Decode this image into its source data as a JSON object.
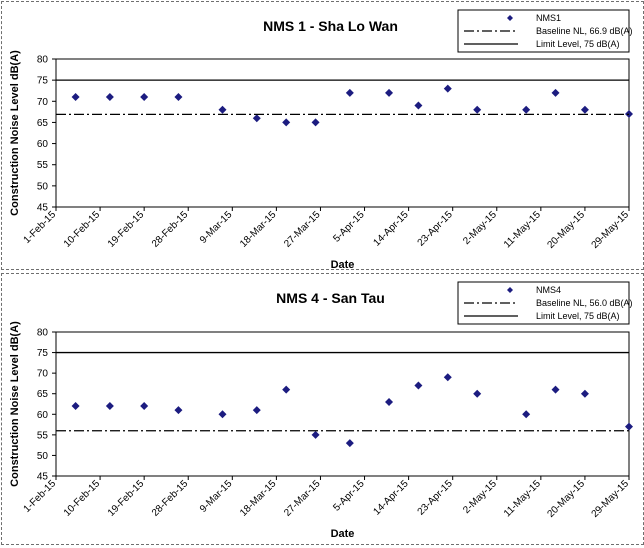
{
  "chart_data": [
    {
      "type": "scatter",
      "title": "NMS 1 - Sha Lo Wan",
      "xlabel": "Date",
      "ylabel": "Construction Noise Level  dB(A)",
      "ylim": [
        45,
        80
      ],
      "y_ticks": [
        45,
        50,
        55,
        60,
        65,
        70,
        75,
        80
      ],
      "x_tick_labels": [
        "1-Feb-15",
        "10-Feb-15",
        "19-Feb-15",
        "28-Feb-15",
        "9-Mar-15",
        "18-Mar-15",
        "27-Mar-15",
        "5-Apr-15",
        "14-Apr-15",
        "23-Apr-15",
        "2-May-15",
        "11-May-15",
        "20-May-15",
        "29-May-15"
      ],
      "grid": false,
      "legend_position": "top-right",
      "series": [
        {
          "name": "NMS1",
          "kind": "points",
          "color": "#1c1c80",
          "x": [
            "2015-02-05",
            "2015-02-12",
            "2015-02-19",
            "2015-02-26",
            "2015-03-07",
            "2015-03-14",
            "2015-03-20",
            "2015-03-26",
            "2015-04-02",
            "2015-04-10",
            "2015-04-16",
            "2015-04-22",
            "2015-04-28",
            "2015-05-08",
            "2015-05-14",
            "2015-05-20",
            "2015-05-29"
          ],
          "y": [
            71,
            71,
            71,
            71,
            68,
            66,
            65,
            65,
            72,
            72,
            69,
            73,
            68,
            68,
            72,
            68,
            67
          ]
        },
        {
          "name": "Baseline NL, 66.9 dB(A)",
          "kind": "hline",
          "value": 66.9,
          "style": "dashdot",
          "color": "#000000"
        },
        {
          "name": "Limit Level, 75 dB(A)",
          "kind": "hline",
          "value": 75,
          "style": "solid",
          "color": "#000000"
        }
      ]
    },
    {
      "type": "scatter",
      "title": "NMS 4 - San Tau",
      "xlabel": "Date",
      "ylabel": "Construction Noise Level  dB(A)",
      "ylim": [
        45,
        80
      ],
      "y_ticks": [
        45,
        50,
        55,
        60,
        65,
        70,
        75,
        80
      ],
      "x_tick_labels": [
        "1-Feb-15",
        "10-Feb-15",
        "19-Feb-15",
        "28-Feb-15",
        "9-Mar-15",
        "18-Mar-15",
        "27-Mar-15",
        "5-Apr-15",
        "14-Apr-15",
        "23-Apr-15",
        "2-May-15",
        "11-May-15",
        "20-May-15",
        "29-May-15"
      ],
      "grid": false,
      "legend_position": "top-right",
      "series": [
        {
          "name": "NMS4",
          "kind": "points",
          "color": "#1c1c80",
          "x": [
            "2015-02-05",
            "2015-02-12",
            "2015-02-19",
            "2015-02-26",
            "2015-03-07",
            "2015-03-14",
            "2015-03-20",
            "2015-03-26",
            "2015-04-02",
            "2015-04-10",
            "2015-04-16",
            "2015-04-22",
            "2015-04-28",
            "2015-05-08",
            "2015-05-14",
            "2015-05-20",
            "2015-05-29"
          ],
          "y": [
            62,
            62,
            62,
            61,
            60,
            61,
            66,
            55,
            53,
            63,
            67,
            69,
            65,
            60,
            66,
            65,
            57
          ]
        },
        {
          "name": "Baseline NL, 56.0 dB(A)",
          "kind": "hline",
          "value": 56.0,
          "style": "dashdot",
          "color": "#000000"
        },
        {
          "name": "Limit Level, 75 dB(A)",
          "kind": "hline",
          "value": 75,
          "style": "solid",
          "color": "#000000"
        }
      ]
    }
  ]
}
